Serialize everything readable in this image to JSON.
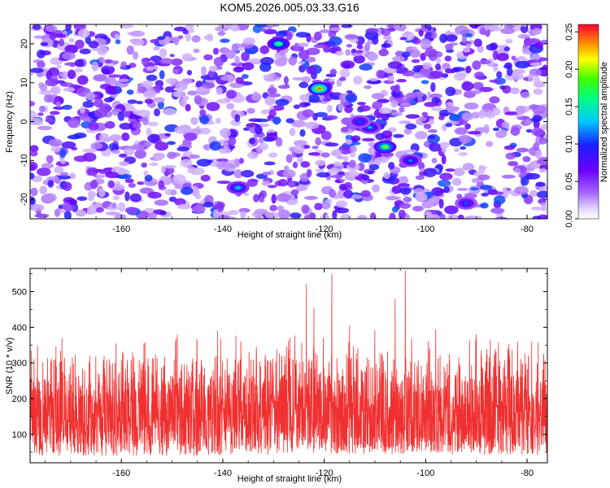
{
  "title": "KOM5.2026.005.03.33.G16",
  "chart_data": [
    {
      "type": "heatmap",
      "title": "KOM5.2026.005.03.33.G16",
      "xlabel": "Height of straight line (km)",
      "ylabel": "Frequency (Hz)",
      "xlim": [
        -178,
        -76
      ],
      "ylim": [
        -25,
        25
      ],
      "xticks": [
        -160,
        -140,
        -120,
        -100,
        -80
      ],
      "yticks": [
        20,
        10,
        0,
        -10,
        -20
      ],
      "colorbar": {
        "label": "Normalized spectral amplitude",
        "range": [
          0,
          0.26
        ],
        "ticks": [
          0,
          0.05,
          0.1,
          0.15,
          0.2,
          0.25
        ],
        "tick_labels": [
          "0.00",
          "0.05",
          "0.10",
          "0.15",
          "0.20",
          "0.25"
        ]
      },
      "hotspots": [
        {
          "x": -121,
          "y": 8.5,
          "value": 0.24
        },
        {
          "x": -129,
          "y": 20,
          "value": 0.18
        },
        {
          "x": -108,
          "y": -6.5,
          "value": 0.2
        },
        {
          "x": -111,
          "y": -1.5,
          "value": 0.13
        },
        {
          "x": -103,
          "y": -10,
          "value": 0.12
        },
        {
          "x": -137,
          "y": -17,
          "value": 0.14
        },
        {
          "x": -113,
          "y": 0,
          "value": 0.11
        },
        {
          "x": -92,
          "y": -21,
          "value": 0.11
        }
      ]
    },
    {
      "type": "line",
      "xlabel": "Height of straight line (km)",
      "ylabel": "SNR (10 * v/v)",
      "xlim": [
        -178,
        -76
      ],
      "ylim": [
        20,
        565
      ],
      "xticks": [
        -160,
        -140,
        -120,
        -100,
        -80
      ],
      "yticks": [
        100,
        200,
        300,
        400,
        500
      ],
      "series_color": "#f03030",
      "baseline_range": [
        40,
        320
      ],
      "peaks": [
        {
          "x": -118.5,
          "y": 550
        },
        {
          "x": -104,
          "y": 560
        },
        {
          "x": -123.5,
          "y": 520
        },
        {
          "x": -106,
          "y": 480
        },
        {
          "x": -122,
          "y": 455
        },
        {
          "x": -90,
          "y": 380
        },
        {
          "x": -141,
          "y": 390
        },
        {
          "x": -115,
          "y": 405
        },
        {
          "x": -110,
          "y": 392
        },
        {
          "x": -98,
          "y": 394
        }
      ]
    }
  ],
  "colors": {
    "axis": "#000000",
    "line": "#f03030",
    "background": "#ffffff"
  }
}
